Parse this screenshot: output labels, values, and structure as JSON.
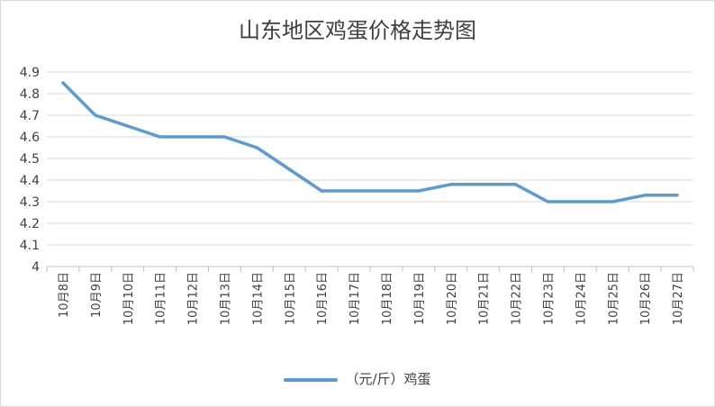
{
  "chart_data": {
    "type": "line",
    "title": "山东地区鸡蛋价格走势图",
    "categories": [
      "10月8日",
      "10月9日",
      "10月10日",
      "10月11日",
      "10月12日",
      "10月13日",
      "10月14日",
      "10月15日",
      "10月16日",
      "10月17日",
      "10月18日",
      "10月19日",
      "10月20日",
      "10月21日",
      "10月22日",
      "10月23日",
      "10月24日",
      "10月25日",
      "10月26日",
      "10月27日"
    ],
    "series": [
      {
        "name": "（元/斤）鸡蛋",
        "color": "#5b9bd5",
        "values": [
          4.85,
          4.7,
          4.65,
          4.6,
          4.6,
          4.6,
          4.55,
          4.45,
          4.35,
          4.35,
          4.35,
          4.35,
          4.38,
          4.38,
          4.38,
          4.3,
          4.3,
          4.3,
          4.33,
          4.33
        ]
      }
    ],
    "ylim": [
      4,
      4.9
    ],
    "yticks": [
      "4.9",
      "4.8",
      "4.7",
      "4.6",
      "4.5",
      "4.4",
      "4.3",
      "4.2",
      "4.1",
      "4"
    ],
    "grid": true,
    "legend_position": "bottom"
  }
}
